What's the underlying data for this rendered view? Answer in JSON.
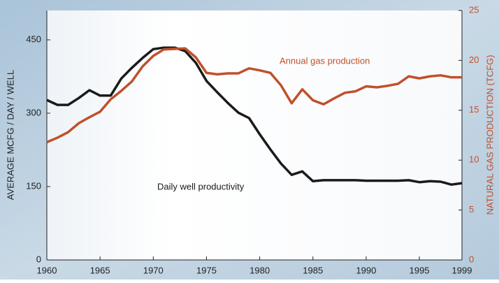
{
  "chart_data": {
    "type": "line",
    "x": [
      1960,
      1961,
      1962,
      1963,
      1964,
      1965,
      1966,
      1967,
      1968,
      1969,
      1970,
      1971,
      1972,
      1973,
      1974,
      1975,
      1976,
      1977,
      1978,
      1979,
      1980,
      1981,
      1982,
      1983,
      1984,
      1985,
      1986,
      1987,
      1988,
      1989,
      1990,
      1991,
      1992,
      1993,
      1994,
      1995,
      1996,
      1997,
      1998,
      1999
    ],
    "xlim": [
      1960,
      1999
    ],
    "xticks": [
      1960,
      1965,
      1970,
      1975,
      1980,
      1985,
      1990,
      1995,
      1999
    ],
    "ylabel": "AVERAGE MCFG / DAY / WELL",
    "y2label": "NATURAL GAS PRODUCTION (TCFG)",
    "ylim": [
      0,
      510
    ],
    "yticks": [
      0,
      150,
      300,
      450
    ],
    "y2lim": [
      0,
      25
    ],
    "y2ticks": [
      0,
      5,
      10,
      15,
      20,
      25
    ],
    "series": [
      {
        "name": "Daily well productivity",
        "color": "#1a1a1a",
        "values": [
          327,
          317,
          317,
          331,
          347,
          336,
          336,
          371,
          393,
          413,
          431,
          434,
          434,
          427,
          403,
          366,
          343,
          321,
          301,
          290,
          257,
          226,
          197,
          174,
          181,
          161,
          163,
          163,
          163,
          163,
          162,
          162,
          162,
          162,
          163,
          159,
          161,
          160,
          154,
          157
        ]
      },
      {
        "name": "Annual gas production",
        "color": "#c0502a",
        "axis": "y2",
        "values": [
          11.8,
          12.25,
          12.8,
          13.7,
          14.3,
          14.85,
          16.1,
          16.95,
          17.9,
          19.4,
          20.45,
          21.1,
          21.15,
          21.2,
          20.3,
          18.75,
          18.6,
          18.7,
          18.7,
          19.2,
          19.0,
          18.75,
          17.5,
          15.7,
          17.1,
          16.0,
          15.6,
          16.2,
          16.75,
          16.9,
          17.4,
          17.3,
          17.45,
          17.65,
          18.4,
          18.2,
          18.4,
          18.5,
          18.3,
          18.3
        ]
      }
    ]
  }
}
